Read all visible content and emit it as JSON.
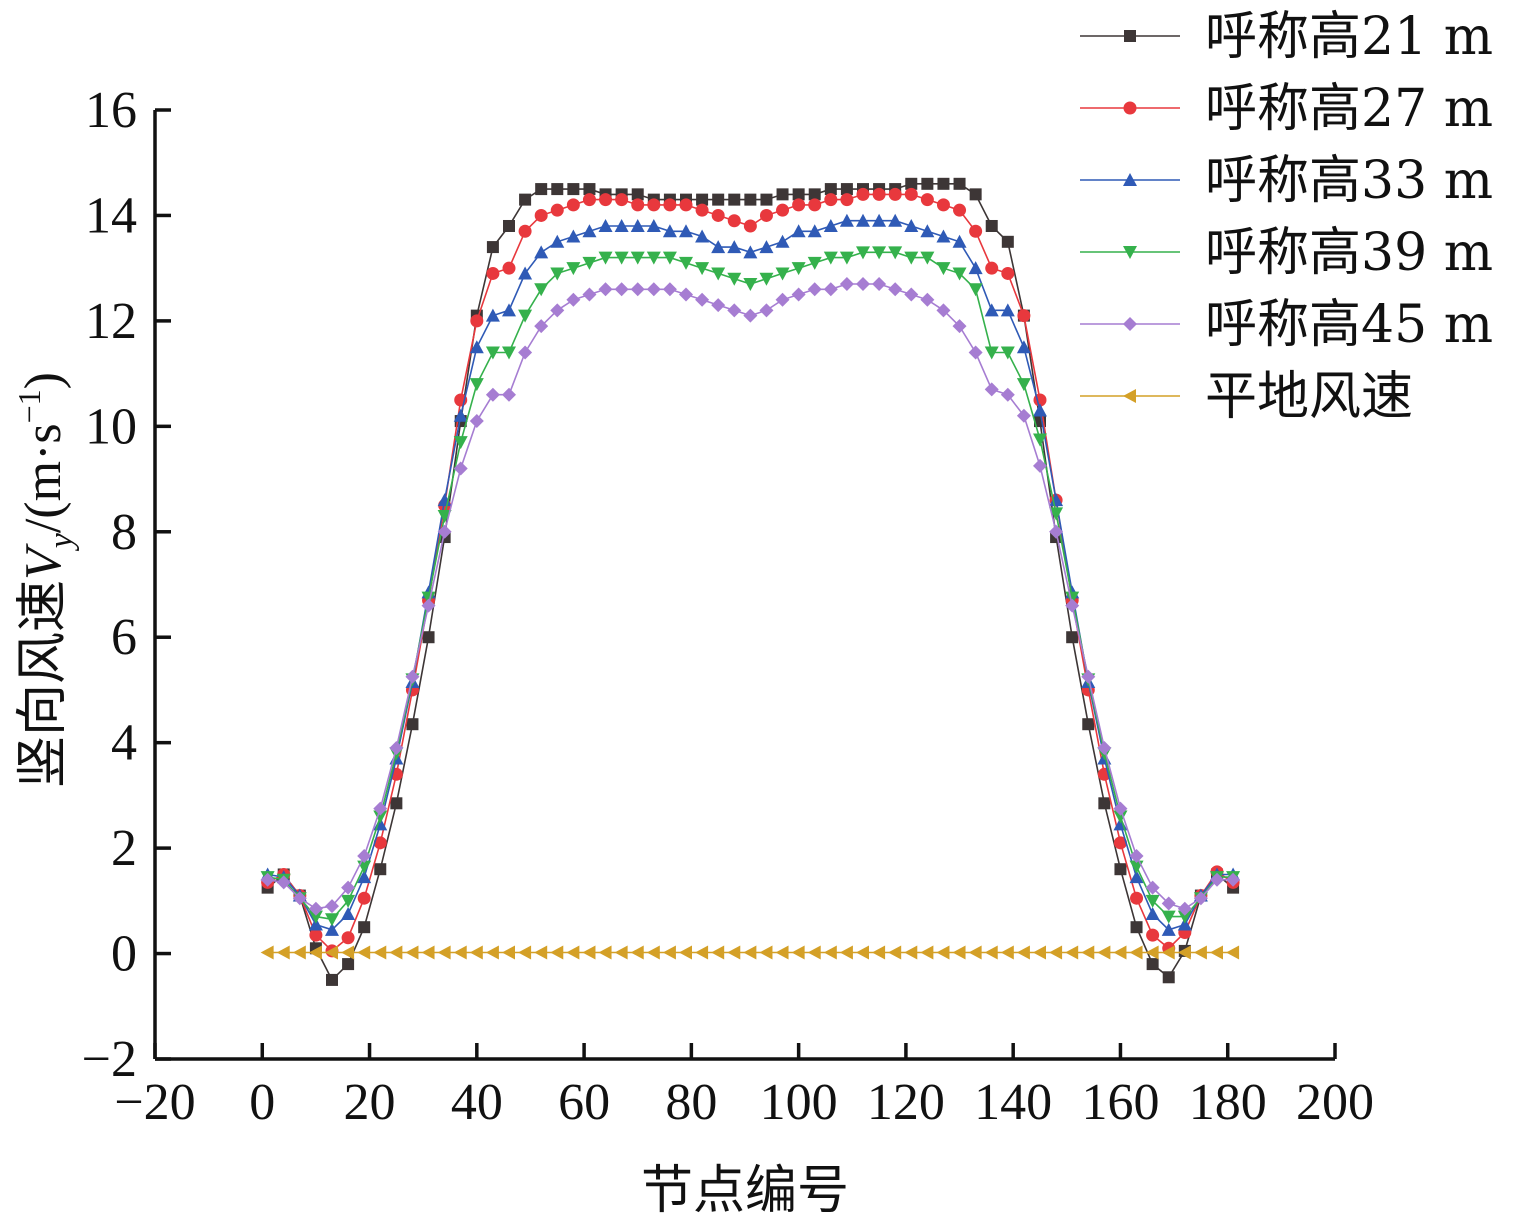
{
  "chart_data": {
    "type": "line",
    "xlabel": "节点编号",
    "ylabel": {
      "prefix": "竖向风速",
      "var": "V",
      "sub": "y",
      "unit_open": "/(m·s",
      "sup": "−1",
      "unit_close": ")"
    },
    "xlim": [
      -20,
      200
    ],
    "ylim": [
      -2,
      16
    ],
    "xticks": [
      -20,
      0,
      20,
      40,
      60,
      80,
      100,
      120,
      140,
      160,
      180,
      200
    ],
    "yticks": [
      -2,
      0,
      2,
      4,
      6,
      8,
      10,
      12,
      14,
      16
    ],
    "xtick_labels": [
      "−20",
      "0",
      "20",
      "40",
      "60",
      "80",
      "100",
      "120",
      "140",
      "160",
      "180",
      "200"
    ],
    "ytick_labels": [
      "−2",
      "0",
      "2",
      "4",
      "6",
      "8",
      "10",
      "12",
      "14",
      "16"
    ],
    "grid": false,
    "legend_position": "top-right",
    "series": [
      {
        "name": "呼称高21 m",
        "color": "#3d3636",
        "marker": "square",
        "x": [
          1,
          4,
          7,
          10,
          13,
          16,
          19,
          22,
          25,
          28,
          31,
          34,
          37,
          40,
          43,
          46,
          49,
          52,
          55,
          58,
          61,
          64,
          67,
          70,
          73,
          76,
          79,
          82,
          85,
          88,
          91,
          94,
          97,
          100,
          103,
          106,
          109,
          112,
          115,
          118,
          121,
          124,
          127,
          130,
          133,
          136,
          139,
          142,
          145,
          148,
          151,
          154,
          157,
          160,
          163,
          166,
          169,
          172,
          175,
          178,
          181
        ],
        "y": [
          1.25,
          1.5,
          1.1,
          0.1,
          -0.5,
          -0.2,
          0.5,
          1.6,
          2.85,
          4.35,
          6.0,
          7.9,
          10.1,
          12.1,
          13.4,
          13.8,
          14.3,
          14.5,
          14.5,
          14.5,
          14.5,
          14.4,
          14.4,
          14.4,
          14.3,
          14.3,
          14.3,
          14.3,
          14.3,
          14.3,
          14.3,
          14.3,
          14.4,
          14.4,
          14.4,
          14.5,
          14.5,
          14.5,
          14.5,
          14.5,
          14.6,
          14.6,
          14.6,
          14.6,
          14.4,
          13.8,
          13.5,
          12.1,
          10.1,
          7.9,
          6.0,
          4.35,
          2.85,
          1.6,
          0.5,
          -0.2,
          -0.45,
          0.05,
          1.1,
          1.5,
          1.25
        ]
      },
      {
        "name": "呼称高27 m",
        "color": "#e8383d",
        "marker": "circle",
        "x": [
          1,
          4,
          7,
          10,
          13,
          16,
          19,
          22,
          25,
          28,
          31,
          34,
          37,
          40,
          43,
          46,
          49,
          52,
          55,
          58,
          61,
          64,
          67,
          70,
          73,
          76,
          79,
          82,
          85,
          88,
          91,
          94,
          97,
          100,
          103,
          106,
          109,
          112,
          115,
          118,
          121,
          124,
          127,
          130,
          133,
          136,
          139,
          142,
          145,
          148,
          151,
          154,
          157,
          160,
          163,
          166,
          169,
          172,
          175,
          178,
          181
        ],
        "y": [
          1.35,
          1.5,
          1.1,
          0.35,
          0.05,
          0.3,
          1.05,
          2.1,
          3.4,
          5.0,
          6.7,
          8.5,
          10.5,
          12.0,
          12.9,
          13.0,
          13.7,
          14.0,
          14.1,
          14.2,
          14.3,
          14.3,
          14.3,
          14.2,
          14.2,
          14.2,
          14.2,
          14.1,
          14.0,
          13.9,
          13.8,
          14.0,
          14.1,
          14.2,
          14.2,
          14.3,
          14.3,
          14.4,
          14.4,
          14.4,
          14.4,
          14.3,
          14.2,
          14.1,
          13.7,
          13.0,
          12.9,
          12.1,
          10.5,
          8.6,
          6.7,
          5.0,
          3.4,
          2.1,
          1.05,
          0.35,
          0.1,
          0.4,
          1.1,
          1.55,
          1.35
        ]
      },
      {
        "name": "呼称高33 m",
        "color": "#2f5ab6",
        "marker": "triangle-up",
        "x": [
          1,
          4,
          7,
          10,
          13,
          16,
          19,
          22,
          25,
          28,
          31,
          34,
          37,
          40,
          43,
          46,
          49,
          52,
          55,
          58,
          61,
          64,
          67,
          70,
          73,
          76,
          79,
          82,
          85,
          88,
          91,
          94,
          97,
          100,
          103,
          106,
          109,
          112,
          115,
          118,
          121,
          124,
          127,
          130,
          133,
          136,
          139,
          142,
          145,
          148,
          151,
          154,
          157,
          160,
          163,
          166,
          169,
          172,
          175,
          178,
          181
        ],
        "y": [
          1.5,
          1.45,
          1.1,
          0.55,
          0.45,
          0.75,
          1.45,
          2.45,
          3.7,
          5.15,
          6.85,
          8.6,
          10.2,
          11.5,
          12.1,
          12.2,
          12.9,
          13.3,
          13.5,
          13.6,
          13.7,
          13.8,
          13.8,
          13.8,
          13.8,
          13.7,
          13.7,
          13.6,
          13.4,
          13.4,
          13.3,
          13.4,
          13.5,
          13.7,
          13.7,
          13.8,
          13.9,
          13.9,
          13.9,
          13.9,
          13.8,
          13.7,
          13.6,
          13.5,
          13.0,
          12.2,
          12.2,
          11.5,
          10.3,
          8.6,
          6.85,
          5.15,
          3.7,
          2.45,
          1.45,
          0.75,
          0.45,
          0.55,
          1.1,
          1.5,
          1.5
        ]
      },
      {
        "name": "呼称高39 m",
        "color": "#35b14c",
        "marker": "triangle-down",
        "x": [
          1,
          4,
          7,
          10,
          13,
          16,
          19,
          22,
          25,
          28,
          31,
          34,
          37,
          40,
          43,
          46,
          49,
          52,
          55,
          58,
          61,
          64,
          67,
          70,
          73,
          76,
          79,
          82,
          85,
          88,
          91,
          94,
          97,
          100,
          103,
          106,
          109,
          112,
          115,
          118,
          121,
          124,
          127,
          130,
          133,
          136,
          139,
          142,
          145,
          148,
          151,
          154,
          157,
          160,
          163,
          166,
          169,
          172,
          175,
          178,
          181
        ],
        "y": [
          1.45,
          1.4,
          1.05,
          0.7,
          0.65,
          1.0,
          1.65,
          2.6,
          3.8,
          5.2,
          6.75,
          8.3,
          9.7,
          10.8,
          11.4,
          11.4,
          12.1,
          12.6,
          12.9,
          13.0,
          13.1,
          13.2,
          13.2,
          13.2,
          13.2,
          13.2,
          13.1,
          13.0,
          12.9,
          12.8,
          12.7,
          12.8,
          12.9,
          13.0,
          13.1,
          13.2,
          13.2,
          13.3,
          13.3,
          13.3,
          13.2,
          13.2,
          13.0,
          12.9,
          12.6,
          11.4,
          11.4,
          10.8,
          9.75,
          8.35,
          6.75,
          5.2,
          3.8,
          2.6,
          1.65,
          1.0,
          0.7,
          0.7,
          1.05,
          1.45,
          1.45
        ]
      },
      {
        "name": "呼称高45 m",
        "color": "#a67dd2",
        "marker": "diamond",
        "x": [
          1,
          4,
          7,
          10,
          13,
          16,
          19,
          22,
          25,
          28,
          31,
          34,
          37,
          40,
          43,
          46,
          49,
          52,
          55,
          58,
          61,
          64,
          67,
          70,
          73,
          76,
          79,
          82,
          85,
          88,
          91,
          94,
          97,
          100,
          103,
          106,
          109,
          112,
          115,
          118,
          121,
          124,
          127,
          130,
          133,
          136,
          139,
          142,
          145,
          148,
          151,
          154,
          157,
          160,
          163,
          166,
          169,
          172,
          175,
          178,
          181
        ],
        "y": [
          1.4,
          1.35,
          1.05,
          0.85,
          0.9,
          1.25,
          1.85,
          2.75,
          3.9,
          5.25,
          6.6,
          8.0,
          9.2,
          10.1,
          10.6,
          10.6,
          11.4,
          11.9,
          12.2,
          12.4,
          12.5,
          12.6,
          12.6,
          12.6,
          12.6,
          12.6,
          12.5,
          12.4,
          12.3,
          12.2,
          12.1,
          12.2,
          12.4,
          12.5,
          12.6,
          12.6,
          12.7,
          12.7,
          12.7,
          12.6,
          12.5,
          12.4,
          12.2,
          11.9,
          11.4,
          10.7,
          10.6,
          10.2,
          9.25,
          8.0,
          6.6,
          5.25,
          3.9,
          2.75,
          1.85,
          1.25,
          0.95,
          0.85,
          1.05,
          1.4,
          1.4
        ]
      },
      {
        "name": "平地风速",
        "color": "#d4a027",
        "marker": "triangle-left",
        "x": [
          1,
          4,
          7,
          10,
          13,
          16,
          19,
          22,
          25,
          28,
          31,
          34,
          37,
          40,
          43,
          46,
          49,
          52,
          55,
          58,
          61,
          64,
          67,
          70,
          73,
          76,
          79,
          82,
          85,
          88,
          91,
          94,
          97,
          100,
          103,
          106,
          109,
          112,
          115,
          118,
          121,
          124,
          127,
          130,
          133,
          136,
          139,
          142,
          145,
          148,
          151,
          154,
          157,
          160,
          163,
          166,
          169,
          172,
          175,
          178,
          181
        ],
        "y": [
          0.02,
          0.02,
          0.02,
          0.02,
          0.02,
          0.02,
          0.02,
          0.02,
          0.02,
          0.02,
          0.02,
          0.02,
          0.02,
          0.02,
          0.02,
          0.02,
          0.02,
          0.02,
          0.02,
          0.02,
          0.02,
          0.02,
          0.02,
          0.02,
          0.02,
          0.02,
          0.02,
          0.02,
          0.02,
          0.02,
          0.02,
          0.02,
          0.02,
          0.02,
          0.02,
          0.02,
          0.02,
          0.02,
          0.02,
          0.02,
          0.02,
          0.02,
          0.02,
          0.02,
          0.02,
          0.02,
          0.02,
          0.02,
          0.02,
          0.02,
          0.02,
          0.02,
          0.02,
          0.02,
          0.02,
          0.02,
          0.02,
          0.02,
          0.02,
          0.02,
          0.02
        ]
      }
    ]
  }
}
